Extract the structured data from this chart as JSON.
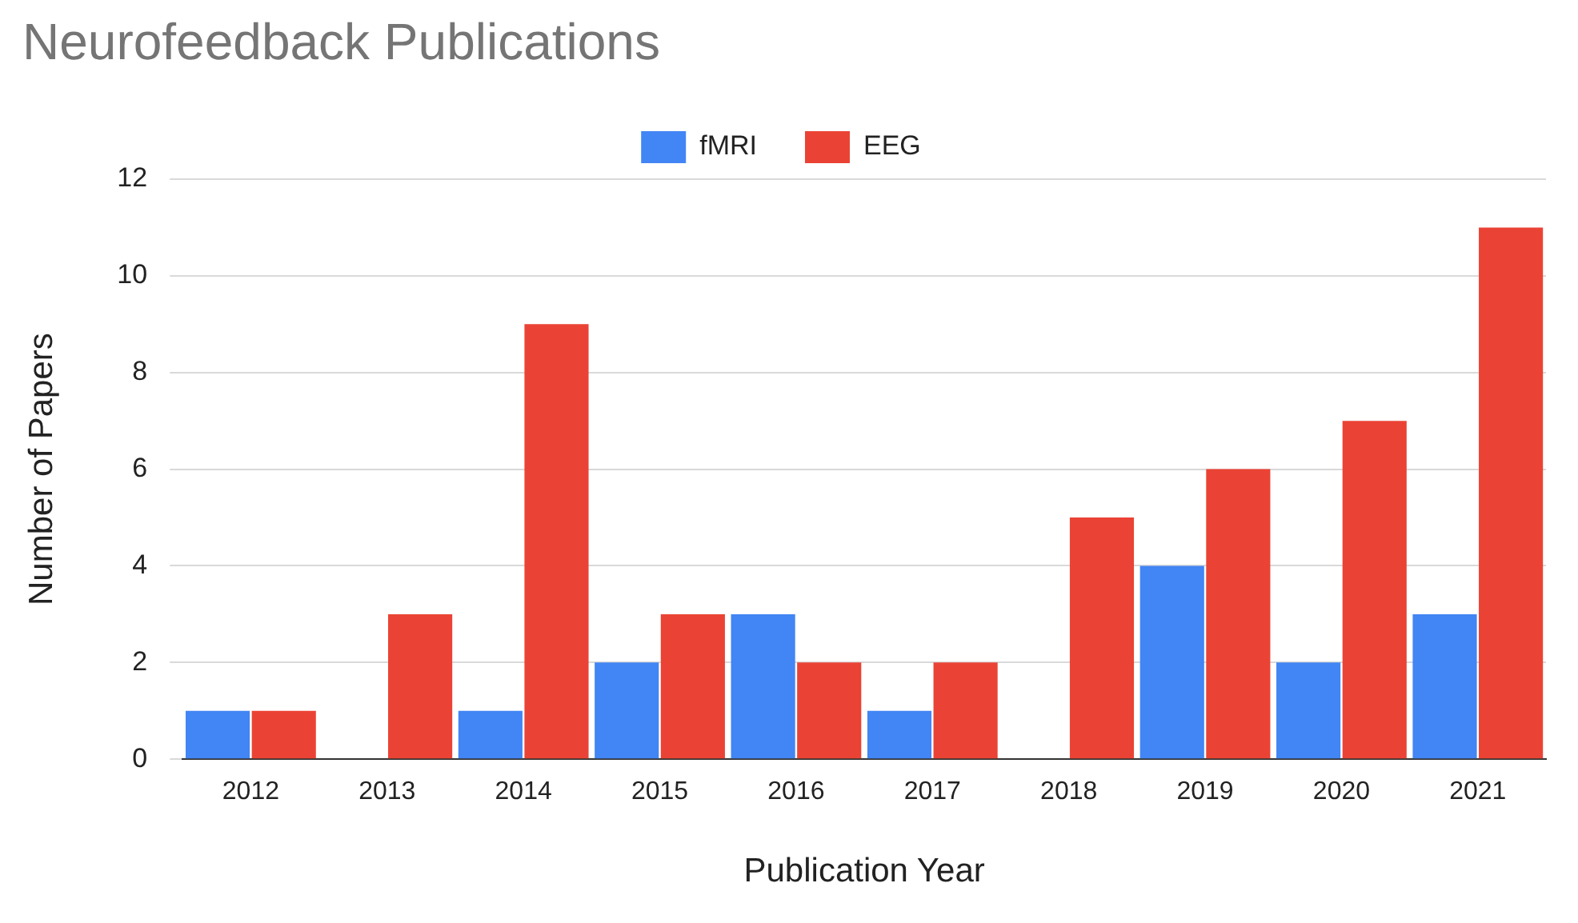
{
  "chart_data": {
    "type": "bar",
    "title": "Neurofeedback Publications",
    "xlabel": "Publication Year",
    "ylabel": "Number of Papers",
    "categories": [
      "2012",
      "2013",
      "2014",
      "2015",
      "2016",
      "2017",
      "2018",
      "2019",
      "2020",
      "2021"
    ],
    "series": [
      {
        "name": "fMRI",
        "color": "#4285f4",
        "values": [
          1,
          0,
          1,
          2,
          3,
          1,
          0,
          4,
          2,
          3
        ]
      },
      {
        "name": "EEG",
        "color": "#ea4335",
        "values": [
          1,
          3,
          9,
          3,
          2,
          2,
          5,
          6,
          7,
          11
        ]
      }
    ],
    "ylim": [
      0,
      12
    ],
    "yticks": [
      0,
      2,
      4,
      6,
      8,
      10,
      12
    ],
    "grid": "y",
    "legend": "top"
  }
}
